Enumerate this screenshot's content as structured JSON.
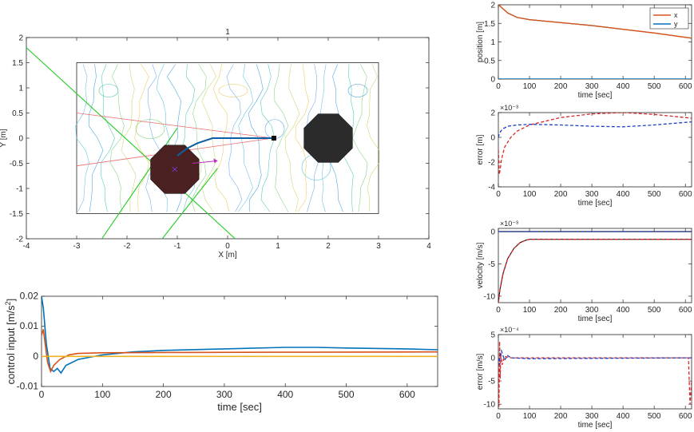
{
  "chart_data": [
    {
      "type": "line",
      "name": "map",
      "title": "1",
      "xlabel": "X [m]",
      "ylabel": "Y [m]",
      "xlim": [
        -4,
        4
      ],
      "ylim": [
        -2,
        2
      ],
      "xticks": [
        "-4",
        "-3",
        "-2",
        "-1",
        "0",
        "1",
        "2",
        "3",
        "4"
      ],
      "yticks": [
        "2",
        "1.5",
        "1",
        "0.5",
        "0",
        "-0.5",
        "-1",
        "-1.5",
        "-2"
      ],
      "region": {
        "x": [
          -3,
          3
        ],
        "y": [
          -1.5,
          1.5
        ]
      },
      "path": [
        [
          -1.0,
          -0.35
        ],
        [
          -0.8,
          -0.2
        ],
        [
          -0.6,
          -0.1
        ],
        [
          -0.3,
          0.0
        ],
        [
          0.0,
          0.0
        ],
        [
          0.9,
          0.0
        ]
      ],
      "goal": [
        0.92,
        0.0
      ],
      "green_lines": [
        {
          "points": [
            [
              -4,
              1.8
            ],
            [
              0.15,
              -2.0
            ]
          ]
        },
        {
          "points": [
            [
              -2.5,
              -2.0
            ],
            [
              -1.0,
              0.2
            ]
          ]
        },
        {
          "points": [
            [
              -1.3,
              -2.0
            ],
            [
              -0.2,
              -0.6
            ]
          ]
        }
      ],
      "red_lines": [
        {
          "points": [
            [
              -3.0,
              0.5
            ],
            [
              0.9,
              0.0
            ]
          ]
        },
        {
          "points": [
            [
              -3.0,
              -0.55
            ],
            [
              0.9,
              0.0
            ]
          ]
        }
      ],
      "arrow": {
        "from": [
          -0.7,
          -0.5
        ],
        "to": [
          -0.2,
          -0.45
        ]
      },
      "obstacles": [
        {
          "center": [
            -1.05,
            -0.62
          ],
          "radius": 0.52,
          "color": "#4a2020"
        },
        {
          "center": [
            2.0,
            0.0
          ],
          "radius": 0.52,
          "color": "#2b2b2b"
        }
      ]
    },
    {
      "type": "line",
      "name": "control-input",
      "xlabel": "time [sec]",
      "ylabel": "control input [m/s^2]",
      "xlim": [
        0,
        650
      ],
      "ylim": [
        -0.01,
        0.02
      ],
      "xticks": [
        "0",
        "100",
        "200",
        "300",
        "400",
        "500",
        "600"
      ],
      "yticks": [
        "0.02",
        "0.01",
        "0",
        "-0.01"
      ],
      "series": [
        {
          "color": "#0072bd",
          "x": [
            0,
            3,
            8,
            14,
            20,
            26,
            32,
            40,
            60,
            100,
            150,
            200,
            300,
            400,
            450,
            500,
            600,
            650
          ],
          "y": [
            0.02,
            0.016,
            0.004,
            -0.004,
            -0.005,
            -0.004,
            -0.0055,
            -0.003,
            -0.001,
            0.0005,
            0.0015,
            0.002,
            0.0025,
            0.003,
            0.003,
            0.0028,
            0.0025,
            0.0022
          ]
        },
        {
          "color": "#d95319",
          "x": [
            0,
            3,
            6,
            10,
            15,
            20,
            30,
            45,
            60,
            100,
            200,
            400,
            650
          ],
          "y": [
            0.007,
            0.009,
            0.004,
            -0.002,
            -0.005,
            -0.003,
            -0.001,
            0.0005,
            0.001,
            0.0012,
            0.0013,
            0.0014,
            0.0015
          ]
        },
        {
          "color": "#edb120",
          "x": [
            0,
            10,
            20,
            40,
            100,
            650
          ],
          "y": [
            0.0,
            0.0,
            0.0,
            0.0,
            0.0,
            0.0
          ]
        }
      ]
    },
    {
      "type": "line",
      "name": "position",
      "xlabel": "time [sec]",
      "ylabel": "position [m]",
      "xlim": [
        0,
        620
      ],
      "ylim": [
        0,
        2
      ],
      "xticks": [
        "0",
        "100",
        "200",
        "300",
        "400",
        "500",
        "600"
      ],
      "yticks": [
        "2",
        "1.5",
        "1",
        "0.5",
        "0"
      ],
      "legend": [
        "x",
        "y"
      ],
      "series": [
        {
          "name": "x",
          "color": "#d95319",
          "x": [
            0,
            10,
            30,
            60,
            100,
            200,
            300,
            400,
            500,
            620
          ],
          "y": [
            2.0,
            1.93,
            1.78,
            1.66,
            1.6,
            1.52,
            1.44,
            1.34,
            1.24,
            1.1
          ]
        },
        {
          "name": "y",
          "color": "#0072bd",
          "x": [
            0,
            620
          ],
          "y": [
            0.0,
            0.0
          ]
        }
      ],
      "reference": [
        {
          "color": "#1a1a1a",
          "x": [
            0,
            10,
            30,
            60,
            100,
            200,
            300,
            400,
            500,
            620
          ],
          "y": [
            2.0,
            1.93,
            1.78,
            1.66,
            1.6,
            1.52,
            1.44,
            1.34,
            1.24,
            1.1
          ]
        },
        {
          "color": "#1a1a1a",
          "x": [
            0,
            620
          ],
          "y": [
            0.0,
            0.0
          ]
        }
      ]
    },
    {
      "type": "line",
      "name": "position-error",
      "xlabel": "time [sec]",
      "ylabel": "error [m]",
      "exponent": "×10⁻³",
      "xlim": [
        0,
        620
      ],
      "ylim": [
        -4,
        2
      ],
      "xticks": [
        "0",
        "100",
        "200",
        "300",
        "400",
        "500",
        "600"
      ],
      "yticks": [
        "2",
        "0",
        "-2",
        "-4"
      ],
      "series": [
        {
          "color": "#d62728",
          "dashed": true,
          "x": [
            0,
            3,
            6,
            10,
            20,
            40,
            60,
            100,
            200,
            300,
            400,
            500,
            620
          ],
          "y": [
            -1.0,
            -3.0,
            -2.6,
            -1.8,
            -0.8,
            0.0,
            0.5,
            1.0,
            1.6,
            1.9,
            2.0,
            1.85,
            1.55
          ]
        },
        {
          "color": "#1f3fbf",
          "dashed": true,
          "x": [
            0,
            3,
            8,
            15,
            30,
            60,
            100,
            200,
            300,
            400,
            500,
            620
          ],
          "y": [
            0.0,
            0.3,
            0.5,
            0.7,
            0.9,
            1.0,
            1.05,
            1.0,
            0.9,
            0.85,
            1.0,
            1.25
          ]
        }
      ]
    },
    {
      "type": "line",
      "name": "velocity",
      "xlabel": "time [sec]",
      "ylabel": "velocity [m/s]",
      "exponent": "×10⁻³",
      "xlim": [
        0,
        620
      ],
      "ylim": [
        -11,
        0.5
      ],
      "xticks": [
        "0",
        "100",
        "200",
        "300",
        "400",
        "500",
        "600"
      ],
      "yticks": [
        "0",
        "-5",
        "-10"
      ],
      "series": [
        {
          "color": "#d62728",
          "dashed": true,
          "x": [
            0,
            5,
            15,
            30,
            50,
            70,
            90,
            100,
            620
          ],
          "y": [
            -11.0,
            -9.0,
            -6.5,
            -4.2,
            -2.6,
            -1.7,
            -1.3,
            -1.2,
            -1.2
          ]
        },
        {
          "color": "#1f3fbf",
          "dashed": true,
          "x": [
            0,
            620
          ],
          "y": [
            0.0,
            0.0
          ]
        }
      ],
      "reference": [
        {
          "color": "#1a1a1a",
          "x": [
            0,
            5,
            15,
            30,
            50,
            70,
            90,
            100,
            620
          ],
          "y": [
            -11.0,
            -9.0,
            -6.5,
            -4.2,
            -2.6,
            -1.7,
            -1.3,
            -1.2,
            -1.2
          ]
        },
        {
          "color": "#1a1a1a",
          "x": [
            0,
            620
          ],
          "y": [
            0.0,
            0.0
          ]
        }
      ]
    },
    {
      "type": "line",
      "name": "velocity-error",
      "xlabel": "time [sec]",
      "ylabel": "error [m/s]",
      "exponent": "×10⁻⁴",
      "xlim": [
        0,
        620
      ],
      "ylim": [
        -11,
        5
      ],
      "xticks": [
        "0",
        "100",
        "200",
        "300",
        "400",
        "500",
        "600"
      ],
      "yticks": [
        "5",
        "0",
        "-5",
        "-10"
      ],
      "series": [
        {
          "color": "#d62728",
          "dashed": true,
          "x": [
            0,
            2,
            4,
            6,
            8,
            12,
            20,
            40,
            100,
            610,
            615,
            620
          ],
          "y": [
            0.0,
            -10.5,
            3.5,
            -4.5,
            1.0,
            -1.5,
            0.3,
            0.0,
            0.0,
            0.0,
            -10.0,
            -5.0
          ]
        },
        {
          "color": "#1f3fbf",
          "dashed": true,
          "x": [
            0,
            3,
            6,
            10,
            20,
            30,
            40,
            100,
            620
          ],
          "y": [
            0.0,
            -1.5,
            0.5,
            1.5,
            -0.5,
            0.5,
            0.0,
            -0.2,
            0.0
          ]
        }
      ]
    }
  ]
}
